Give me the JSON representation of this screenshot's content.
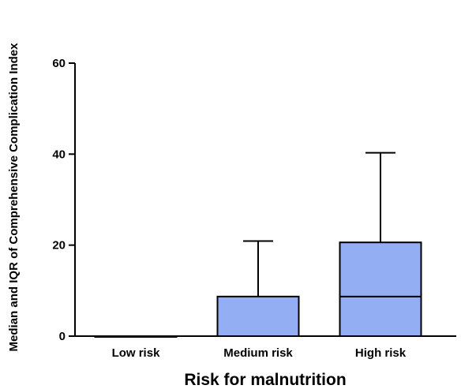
{
  "chart_data": {
    "type": "box",
    "xlabel": "Risk for malnutrition",
    "ylabel": "Median and IQR of Comprehensive Complication Index",
    "ylim": [
      0,
      60
    ],
    "yticks": [
      0,
      20,
      40,
      60
    ],
    "grid": false,
    "legend": "none",
    "categories": [
      "Low risk",
      "Medium risk",
      "High risk"
    ],
    "boxes": [
      {
        "category": "Low risk",
        "q1": 0,
        "median": 0,
        "q3": 0,
        "whisker_high": 0
      },
      {
        "category": "Medium risk",
        "q1": 0,
        "median": 0,
        "q3": 8.7,
        "whisker_high": 20.9
      },
      {
        "category": "High risk",
        "q1": 0,
        "median": 8.7,
        "q3": 20.6,
        "whisker_high": 40.3
      }
    ],
    "box_color": "#94aef4",
    "line_color": "#000000"
  }
}
